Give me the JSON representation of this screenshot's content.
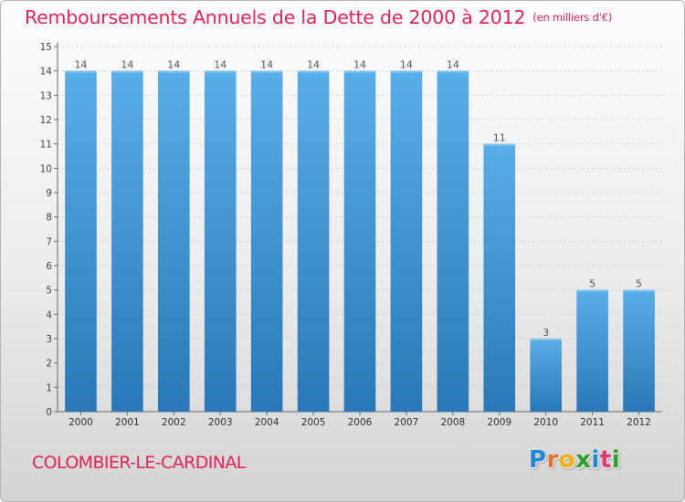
{
  "header": {
    "title": "Remboursements Annuels de la Dette de 2000 à 2012",
    "unit": "(en milliers d'€)"
  },
  "footer": {
    "commune": "COLOMBIER-LE-CARDINAL",
    "brand": "Proxiti"
  },
  "colors": {
    "accent": "#e0245a",
    "bar_top": "#5aaee8",
    "bar_bottom": "#2a78b7",
    "logo_letters": [
      "#1e88d6",
      "#e8702a",
      "#f2b000",
      "#2ca02c",
      "#1e88d6",
      "#e03a6a",
      "#2ca02c"
    ]
  },
  "chart_data": {
    "type": "bar",
    "title": "Remboursements Annuels de la Dette de 2000 à 2012",
    "ylabel": "en milliers d'€",
    "xlabel": "",
    "categories": [
      "2000",
      "2001",
      "2002",
      "2003",
      "2004",
      "2005",
      "2006",
      "2007",
      "2008",
      "2009",
      "2010",
      "2011",
      "2012"
    ],
    "values": [
      14,
      14,
      14,
      14,
      14,
      14,
      14,
      14,
      14,
      11,
      3,
      5,
      5
    ],
    "data_labels": [
      "14",
      "14",
      "14",
      "14",
      "14",
      "14",
      "14",
      "14",
      "14",
      "11",
      "3",
      "5",
      "5"
    ],
    "ylim": [
      0,
      15
    ],
    "yticks": [
      0,
      1,
      2,
      3,
      4,
      5,
      6,
      7,
      8,
      9,
      10,
      11,
      12,
      13,
      14,
      15
    ],
    "grid": true
  }
}
